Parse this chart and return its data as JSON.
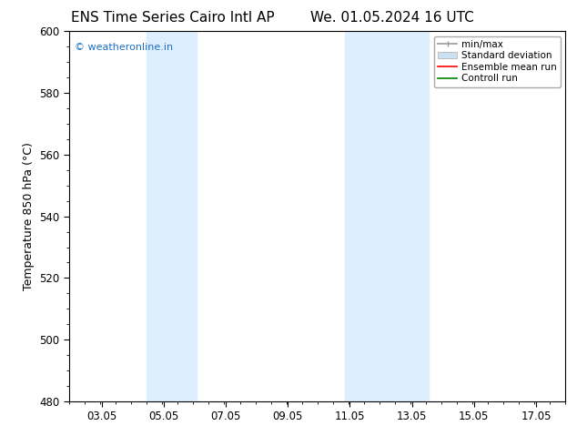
{
  "title_left": "ENS Time Series Cairo Intl AP",
  "title_right": "We. 01.05.2024 16 UTC",
  "ylabel": "Temperature 850 hPa (°C)",
  "xlim_min": 2.0,
  "xlim_max": 18.0,
  "ylim_min": 480,
  "ylim_max": 600,
  "yticks": [
    480,
    500,
    520,
    540,
    560,
    580,
    600
  ],
  "xticks": [
    3.05,
    5.05,
    7.05,
    9.05,
    11.05,
    13.05,
    15.05,
    17.05
  ],
  "xtick_labels": [
    "03.05",
    "05.05",
    "07.05",
    "09.05",
    "11.05",
    "13.05",
    "15.05",
    "17.05"
  ],
  "bg_color": "#ffffff",
  "plot_bg_color": "#ffffff",
  "shaded_bands": [
    {
      "xmin": 4.5,
      "xmax": 6.1,
      "color": "#ddeeff"
    },
    {
      "xmin": 10.9,
      "xmax": 13.6,
      "color": "#ddeeff"
    }
  ],
  "watermark_text": "© weatheronline.in",
  "watermark_color": "#1a6fc4",
  "legend_labels": [
    "min/max",
    "Standard deviation",
    "Ensemble mean run",
    "Controll run"
  ],
  "legend_colors": [
    "#999999",
    "#cce0f0",
    "#ff0000",
    "#008000"
  ],
  "font_family": "DejaVu Sans",
  "title_fontsize": 11,
  "tick_fontsize": 8.5,
  "ylabel_fontsize": 9,
  "legend_fontsize": 7.5
}
